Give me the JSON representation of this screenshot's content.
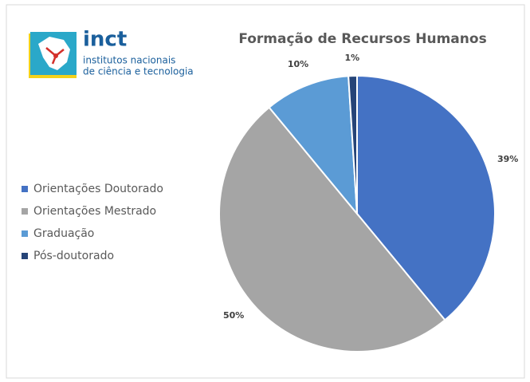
{
  "logo": {
    "name": "inct",
    "line1": "institutos nacionais",
    "line2": "de ciência e tecnologia"
  },
  "chart_data": {
    "type": "pie",
    "title": "Formação de Recursos Humanos",
    "categories": [
      "Orientações Doutorado",
      "Orientações Mestrado",
      "Graduação",
      "Pós-doutorado"
    ],
    "values": [
      39,
      50,
      10,
      1
    ],
    "value_labels": [
      "39%",
      "50%",
      "10%",
      "1%"
    ],
    "colors": [
      "#4472c4",
      "#a5a5a5",
      "#5b9bd5",
      "#264478"
    ],
    "legend": "left"
  }
}
